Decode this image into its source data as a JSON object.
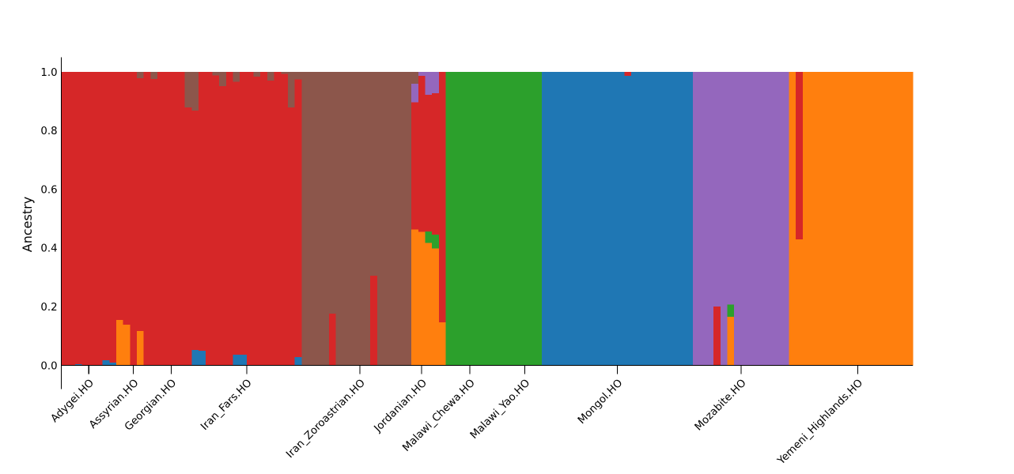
{
  "chart_data": {
    "type": "bar",
    "stacked": true,
    "title": "",
    "xlabel": "",
    "ylabel": "Ancestry",
    "xlim": [
      -0.5,
      123.5
    ],
    "ylim": [
      -0.08,
      1.05
    ],
    "grid": false,
    "legend": "none",
    "n_bars": 124,
    "yticks": [
      0.0,
      0.2,
      0.4,
      0.6,
      0.8,
      1.0
    ],
    "ytick_labels": [
      "0.0",
      "0.2",
      "0.4",
      "0.6",
      "0.8",
      "1.0"
    ],
    "x_ticks": [
      3.5,
      10,
      15.5,
      26.5,
      43,
      52,
      59,
      67,
      80.5,
      98.5,
      115.5
    ],
    "x_tick_labels": [
      "Adygei.HO",
      "Assyrian.HO",
      "Georgian.HO",
      "Iran_Fars.HO",
      "Iran_Zoroastrian.HO",
      "Jordanian.HO",
      "Malawi_Chewa.HO",
      "Malawi_Yao.HO",
      "Mongol.HO",
      "Mozabite.HO",
      "Yemeni_Highlands.HO"
    ],
    "x_tick_rotation": 45,
    "series": [
      {
        "color": "#1f77b4",
        "values": [
          0,
          0,
          0.005,
          0,
          0,
          0,
          0.019,
          0.011,
          0,
          0,
          0,
          0,
          0,
          0,
          0,
          0,
          0,
          0,
          0,
          0.054,
          0.051,
          0,
          0,
          0,
          0,
          0.038,
          0.038,
          0,
          0,
          0,
          0,
          0,
          0,
          0,
          0.03,
          0,
          0,
          0,
          0,
          0,
          0,
          0,
          0,
          0,
          0,
          0,
          0,
          0,
          0,
          0,
          0,
          0,
          0,
          0,
          0,
          0,
          0,
          0,
          0,
          0,
          0,
          0,
          0,
          0,
          0,
          0,
          0,
          0,
          0,
          0,
          1,
          1,
          1,
          1,
          1,
          1,
          1,
          1,
          1,
          1,
          1,
          1,
          0.987,
          1,
          1,
          1,
          1,
          1,
          1,
          1,
          1,
          1,
          0,
          0,
          0,
          0,
          0,
          0,
          0,
          0,
          0,
          0,
          0,
          0,
          0,
          0,
          0,
          0,
          0,
          0,
          0,
          0,
          0,
          0,
          0,
          0,
          0,
          0,
          0,
          0,
          0,
          0,
          0,
          0
        ]
      },
      {
        "color": "#ff7f0e",
        "values": [
          0,
          0,
          0,
          0,
          0,
          0,
          0,
          0,
          0.156,
          0.14,
          0,
          0.119,
          0,
          0,
          0,
          0,
          0,
          0,
          0,
          0,
          0,
          0,
          0,
          0,
          0,
          0,
          0,
          0,
          0,
          0,
          0,
          0,
          0,
          0,
          0,
          0,
          0,
          0,
          0,
          0,
          0,
          0,
          0,
          0,
          0,
          0,
          0,
          0,
          0,
          0,
          0,
          0.464,
          0.456,
          0.419,
          0.399,
          0.148,
          0,
          0,
          0,
          0,
          0,
          0,
          0,
          0,
          0,
          0,
          0,
          0,
          0,
          0,
          0,
          0,
          0,
          0,
          0,
          0,
          0,
          0,
          0,
          0,
          0,
          0,
          0,
          0,
          0,
          0,
          0,
          0,
          0,
          0,
          0,
          0,
          0,
          0,
          0,
          0,
          0,
          0.167,
          0,
          0,
          0,
          0,
          0,
          0,
          0,
          0,
          1,
          0.43,
          1,
          1,
          1,
          1,
          1,
          1,
          1,
          1,
          1,
          1,
          1,
          1,
          1,
          1,
          1,
          1
        ]
      },
      {
        "color": "#2ca02c",
        "values": [
          0,
          0,
          0,
          0,
          0,
          0,
          0,
          0,
          0,
          0,
          0,
          0,
          0,
          0,
          0,
          0,
          0,
          0,
          0,
          0,
          0,
          0,
          0,
          0,
          0,
          0,
          0,
          0,
          0,
          0,
          0,
          0,
          0,
          0,
          0,
          0,
          0,
          0,
          0,
          0,
          0,
          0,
          0,
          0,
          0,
          0,
          0,
          0,
          0,
          0,
          0,
          0,
          0,
          0.039,
          0.048,
          0,
          1,
          1,
          1,
          1,
          1,
          1,
          1,
          1,
          1,
          1,
          1,
          1,
          1,
          1,
          0,
          0,
          0,
          0,
          0,
          0,
          0,
          0,
          0,
          0,
          0,
          0,
          0,
          0,
          0,
          0,
          0,
          0,
          0,
          0,
          0,
          0,
          0,
          0,
          0,
          0,
          0,
          0.041,
          0,
          0,
          0,
          0,
          0,
          0,
          0,
          0,
          0,
          0,
          0,
          0,
          0,
          0,
          0,
          0,
          0,
          0,
          0,
          0,
          0,
          0,
          0,
          0,
          0,
          0
        ]
      },
      {
        "color": "#d62728",
        "values": [
          1,
          1,
          0.995,
          1,
          1,
          1,
          0.981,
          0.989,
          0.844,
          0.86,
          1,
          0.86,
          1,
          0.977,
          1,
          1,
          1,
          1,
          0.88,
          0.815,
          0.949,
          1,
          0.989,
          0.952,
          1,
          0.93,
          0.962,
          1,
          0.985,
          1,
          0.971,
          1,
          0.994,
          0.88,
          0.946,
          0,
          0,
          0,
          0,
          0.178,
          0,
          0,
          0,
          0,
          0,
          0.307,
          0,
          0,
          0,
          0,
          0,
          0.434,
          0.531,
          0.465,
          0.481,
          0.852,
          0,
          0,
          0,
          0,
          0,
          0,
          0,
          0,
          0,
          0,
          0,
          0,
          0,
          0,
          0,
          0,
          0,
          0,
          0,
          0,
          0,
          0,
          0,
          0,
          0,
          0,
          0.013,
          0,
          0,
          0,
          0,
          0,
          0,
          0,
          0,
          0,
          0,
          0,
          0,
          0.202,
          0,
          0,
          0,
          0,
          0,
          0,
          0,
          0,
          0,
          0,
          0,
          0.57,
          0,
          0,
          0,
          0,
          0,
          0,
          0,
          0,
          0,
          0,
          0,
          0,
          0,
          0,
          0,
          0
        ]
      },
      {
        "color": "#9467bd",
        "values": [
          0,
          0,
          0,
          0,
          0,
          0,
          0,
          0,
          0,
          0,
          0,
          0,
          0,
          0,
          0,
          0,
          0,
          0,
          0,
          0,
          0,
          0,
          0,
          0,
          0,
          0,
          0,
          0,
          0,
          0,
          0,
          0,
          0,
          0,
          0,
          0,
          0,
          0,
          0,
          0,
          0,
          0,
          0,
          0,
          0,
          0,
          0,
          0,
          0,
          0,
          0,
          0.062,
          0.013,
          0.077,
          0.072,
          0,
          0,
          0,
          0,
          0,
          0,
          0,
          0,
          0,
          0,
          0,
          0,
          0,
          0,
          0,
          0,
          0,
          0,
          0,
          0,
          0,
          0,
          0,
          0,
          0,
          0,
          0,
          0,
          0,
          0,
          0,
          0,
          0,
          0,
          0,
          0,
          0,
          1,
          1,
          1,
          0.798,
          1,
          0.792,
          1,
          1,
          1,
          1,
          1,
          1,
          1,
          1,
          0,
          0,
          0,
          0,
          0,
          0,
          0,
          0,
          0,
          0,
          0,
          0,
          0,
          0,
          0,
          0,
          0,
          0
        ]
      },
      {
        "color": "#8c564b",
        "values": [
          0,
          0,
          0,
          0,
          0,
          0,
          0,
          0,
          0,
          0,
          0,
          0.021,
          0,
          0.023,
          0,
          0,
          0,
          0,
          0.12,
          0.131,
          0,
          0,
          0.011,
          0.048,
          0,
          0.032,
          0,
          0,
          0.015,
          0,
          0.029,
          0,
          0.006,
          0.12,
          0.024,
          1,
          1,
          1,
          1,
          0.822,
          1,
          1,
          1,
          1,
          1,
          0.693,
          1,
          1,
          1,
          1,
          1,
          0.04,
          0,
          0,
          0,
          0,
          0,
          0,
          0,
          0,
          0,
          0,
          0,
          0,
          0,
          0,
          0,
          0,
          0,
          0,
          0,
          0,
          0,
          0,
          0,
          0,
          0,
          0,
          0,
          0,
          0,
          0,
          0,
          0,
          0,
          0,
          0,
          0,
          0,
          0,
          0,
          0,
          0,
          0,
          0,
          0,
          0,
          0,
          0,
          0,
          0,
          0,
          0,
          0,
          0,
          0,
          0,
          0,
          0,
          0,
          0,
          0,
          0,
          0,
          0,
          0,
          0,
          0,
          0,
          0,
          0,
          0,
          0,
          0
        ]
      }
    ]
  }
}
